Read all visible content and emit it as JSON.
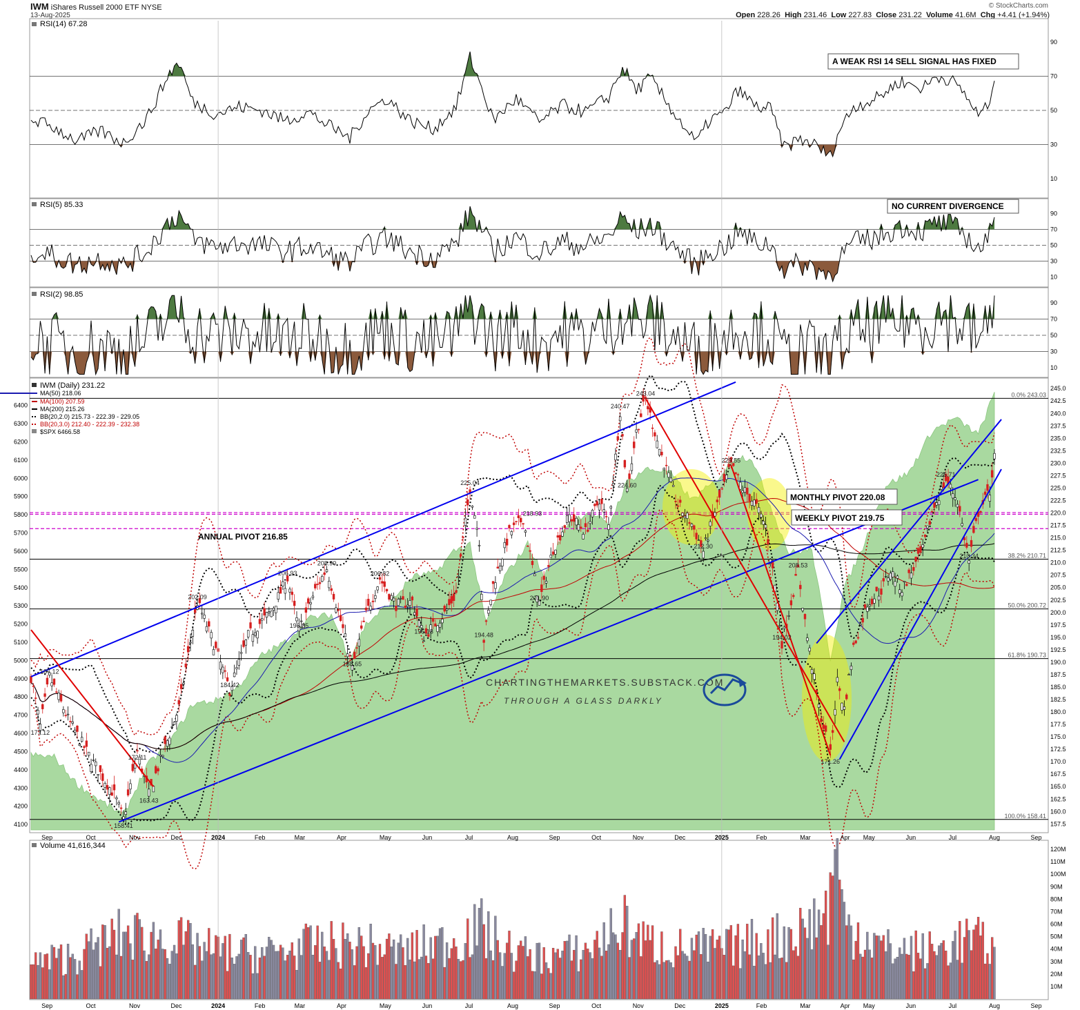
{
  "header": {
    "ticker": "IWM",
    "name": "iShares Russell 2000 ETF",
    "exchange": "NYSE",
    "date": "13-Aug-2025",
    "brand": "© StockCharts.com",
    "open_label": "Open",
    "open": "228.26",
    "high_label": "High",
    "high": "231.46",
    "low_label": "Low",
    "low": "227.83",
    "close_label": "Close",
    "close": "231.22",
    "volume_label": "Volume",
    "volume": "41.6M",
    "chg_label": "Chg",
    "chg": "+4.41 (+1.94%)"
  },
  "colors": {
    "up_candle": "#000000",
    "down_candle": "#d62020",
    "trend_red": "#e00000",
    "channel_blue": "#0000ee",
    "ma50": "#1a1ab0",
    "ma100": "#c00000",
    "ma200": "#000000",
    "pivot_magenta": "#cc00cc",
    "spx_area": "#a9d9a0",
    "rsi_over": "#4d7a40",
    "rsi_under": "#8b5a3c",
    "highlight": "#f5f000"
  },
  "x_axis_labels": [
    "Sep",
    "Oct",
    "Nov",
    "Dec",
    "2024",
    "Feb",
    "Mar",
    "Apr",
    "May",
    "Jun",
    "Jul",
    "Aug",
    "Sep",
    "Oct",
    "Nov",
    "Dec",
    "2025",
    "Feb",
    "Mar",
    "Apr",
    "May",
    "Jun",
    "Jul",
    "Aug",
    "Sep"
  ],
  "panels": {
    "rsi14": {
      "label": "RSI(14) 67.28",
      "note": "A WEAK RSI 14 SELL SIGNAL HAS FIXED",
      "ticks": [
        "90",
        "70",
        "50",
        "30",
        "10"
      ]
    },
    "rsi5": {
      "label": "RSI(5) 85.33",
      "note": "NO CURRENT DIVERGENCE",
      "ticks": [
        "90",
        "70",
        "50",
        "30",
        "10"
      ]
    },
    "rsi2": {
      "label": "RSI(2) 98.85",
      "ticks": [
        "90",
        "70",
        "50",
        "30",
        "10"
      ]
    },
    "volume": {
      "label": "Volume 41,616,344",
      "ticks": [
        "120M",
        "110M",
        "100M",
        "90M",
        "80M",
        "70M",
        "60M",
        "50M",
        "40M",
        "30M",
        "20M",
        "10M"
      ]
    }
  },
  "legend": {
    "price": "IWM (Daily) 231.22",
    "ma50": "MA(50) 218.06",
    "ma100": "MA(100) 207.59",
    "ma200": "MA(200) 215.26",
    "bb2": "BB(20,2.0) 215.73 - 222.39 - 229.05",
    "bb3": "BB(20,3.0) 212.40 - 222.39 - 232.38",
    "spx": "$SPX 6466.58"
  },
  "annotations": {
    "annual_pivot": "ANNUAL PIVOT 216.85",
    "monthly_pivot": "MONTHLY PIVOT 220.08",
    "weekly_pivot": "WEEKLY PIVOT 219.75",
    "watermark_1": "CHARTINGTHEMARKETS.SUBSTACK.COM",
    "watermark_2": "THROUGH A GLASS DARKLY"
  },
  "fib_levels": [
    {
      "label": "0.0% 243.03",
      "value": 243.03
    },
    {
      "label": "38.2% 210.71",
      "value": 210.71
    },
    {
      "label": "50.0% 200.72",
      "value": 200.72
    },
    {
      "label": "61.8% 190.73",
      "value": 190.73
    },
    {
      "label": "100.0% 158.41",
      "value": 158.41
    }
  ],
  "price_ticks": [
    "245.0",
    "242.5",
    "240.0",
    "237.5",
    "235.0",
    "232.5",
    "230.0",
    "227.5",
    "225.0",
    "222.5",
    "220.0",
    "217.5",
    "215.0",
    "212.5",
    "210.0",
    "207.5",
    "205.0",
    "202.5",
    "200.0",
    "197.5",
    "195.0",
    "192.5",
    "190.0",
    "187.5",
    "185.0",
    "182.5",
    "180.0",
    "177.5",
    "175.0",
    "172.5",
    "170.0",
    "167.5",
    "165.0",
    "162.5",
    "160.0",
    "157.5"
  ],
  "spx_ticks": [
    "6400",
    "6300",
    "6200",
    "6100",
    "6000",
    "5900",
    "5800",
    "5700",
    "5600",
    "5500",
    "5400",
    "5300",
    "5200",
    "5100",
    "5000",
    "4900",
    "4800",
    "4700",
    "4600",
    "4500",
    "4400",
    "4300",
    "4200",
    "4100"
  ],
  "price_labels": [
    {
      "label": "187.12",
      "i": 8,
      "v": 187.12
    },
    {
      "label": "177.12",
      "i": 4,
      "v": 177.12
    },
    {
      "label": "172.11",
      "i": 46,
      "v": 172.11
    },
    {
      "label": "163.43",
      "i": 51,
      "v": 163.43
    },
    {
      "label": "158.41",
      "i": 40,
      "v": 158.41
    },
    {
      "label": "202.09",
      "i": 72,
      "v": 202.09
    },
    {
      "label": "184.42",
      "i": 86,
      "v": 184.42
    },
    {
      "label": "206.93",
      "i": 111,
      "v": 206.93
    },
    {
      "label": "196.35",
      "i": 116,
      "v": 196.35
    },
    {
      "label": "208.90",
      "i": 128,
      "v": 208.9
    },
    {
      "label": "188.65",
      "i": 139,
      "v": 188.65
    },
    {
      "label": "206.82",
      "i": 151,
      "v": 206.82
    },
    {
      "label": "195.18",
      "i": 170,
      "v": 195.18
    },
    {
      "label": "225.04",
      "i": 190,
      "v": 225.04
    },
    {
      "label": "194.48",
      "i": 196,
      "v": 194.48
    },
    {
      "label": "218.93",
      "i": 217,
      "v": 218.93
    },
    {
      "label": "201.90",
      "i": 220,
      "v": 201.9
    },
    {
      "label": "224.60",
      "i": 258,
      "v": 224.6
    },
    {
      "label": "240.47",
      "i": 255,
      "v": 240.47
    },
    {
      "label": "243.04",
      "i": 266,
      "v": 243.04
    },
    {
      "label": "212.30",
      "i": 291,
      "v": 212.3
    },
    {
      "label": "229.55",
      "i": 303,
      "v": 229.55
    },
    {
      "label": "208.53",
      "i": 332,
      "v": 208.53
    },
    {
      "label": "194.02",
      "i": 325,
      "v": 194.02
    },
    {
      "label": "171.26",
      "i": 346,
      "v": 171.26
    },
    {
      "label": "226.71",
      "i": 396,
      "v": 226.71
    },
    {
      "label": "210.34",
      "i": 406,
      "v": 210.34
    }
  ],
  "chart_data": {
    "type": "candlestick",
    "title": "IWM iShares Russell 2000 ETF NYSE",
    "x_range": [
      "Aug-2023",
      "13-Aug-2025"
    ],
    "ylim": [
      156.3,
      246.0
    ],
    "secondary_ylim": [
      4070,
      6520
    ],
    "volume_ylim": [
      0,
      125
    ],
    "volume_unit": "M",
    "anchors": [
      [
        0,
        187.1
      ],
      [
        4,
        177.1
      ],
      [
        8,
        187.1
      ],
      [
        16,
        178.6
      ],
      [
        26,
        170.5
      ],
      [
        36,
        163.4
      ],
      [
        40,
        158.4
      ],
      [
        46,
        172.1
      ],
      [
        51,
        163.4
      ],
      [
        56,
        170.2
      ],
      [
        64,
        180.9
      ],
      [
        72,
        202.1
      ],
      [
        78,
        195.1
      ],
      [
        86,
        184.4
      ],
      [
        94,
        195.3
      ],
      [
        104,
        200.3
      ],
      [
        111,
        206.9
      ],
      [
        116,
        196.4
      ],
      [
        123,
        204.4
      ],
      [
        128,
        208.9
      ],
      [
        135,
        196.6
      ],
      [
        139,
        188.7
      ],
      [
        145,
        199.6
      ],
      [
        151,
        206.8
      ],
      [
        158,
        201.5
      ],
      [
        165,
        202.2
      ],
      [
        170,
        195.2
      ],
      [
        179,
        199.8
      ],
      [
        184,
        203.8
      ],
      [
        190,
        225.0
      ],
      [
        194,
        214.6
      ],
      [
        196,
        194.5
      ],
      [
        200,
        205.5
      ],
      [
        207,
        215.9
      ],
      [
        213,
        218.9
      ],
      [
        220,
        201.9
      ],
      [
        226,
        212.8
      ],
      [
        233,
        219.4
      ],
      [
        240,
        216.2
      ],
      [
        246,
        222.8
      ],
      [
        250,
        217.4
      ],
      [
        255,
        240.5
      ],
      [
        258,
        224.6
      ],
      [
        262,
        236.3
      ],
      [
        266,
        243.0
      ],
      [
        272,
        232.9
      ],
      [
        280,
        221.6
      ],
      [
        286,
        217.8
      ],
      [
        291,
        212.3
      ],
      [
        296,
        220.3
      ],
      [
        303,
        229.6
      ],
      [
        308,
        224.9
      ],
      [
        313,
        222.1
      ],
      [
        318,
        217.4
      ],
      [
        322,
        205.5
      ],
      [
        325,
        194.0
      ],
      [
        328,
        200.1
      ],
      [
        332,
        208.5
      ],
      [
        336,
        195.0
      ],
      [
        341,
        180.9
      ],
      [
        346,
        171.3
      ],
      [
        349,
        186.2
      ],
      [
        352,
        180.6
      ],
      [
        356,
        193.0
      ],
      [
        362,
        201.8
      ],
      [
        368,
        204.5
      ],
      [
        372,
        208.4
      ],
      [
        377,
        204.7
      ],
      [
        382,
        208.9
      ],
      [
        386,
        212.5
      ],
      [
        390,
        220.2
      ],
      [
        396,
        226.7
      ],
      [
        401,
        222.5
      ],
      [
        406,
        210.3
      ],
      [
        410,
        220.1
      ],
      [
        415,
        224.5
      ],
      [
        417,
        231.2
      ]
    ],
    "spx_anchors": [
      [
        0,
        4480
      ],
      [
        10,
        4470
      ],
      [
        20,
        4320
      ],
      [
        30,
        4230
      ],
      [
        40,
        4150
      ],
      [
        50,
        4420
      ],
      [
        60,
        4550
      ],
      [
        70,
        4760
      ],
      [
        80,
        4780
      ],
      [
        90,
        4860
      ],
      [
        100,
        5030
      ],
      [
        110,
        5100
      ],
      [
        120,
        5230
      ],
      [
        130,
        5250
      ],
      [
        138,
        5010
      ],
      [
        145,
        5200
      ],
      [
        155,
        5310
      ],
      [
        165,
        5460
      ],
      [
        175,
        5480
      ],
      [
        183,
        5600
      ],
      [
        190,
        5640
      ],
      [
        197,
        5200
      ],
      [
        205,
        5460
      ],
      [
        215,
        5640
      ],
      [
        222,
        5460
      ],
      [
        232,
        5750
      ],
      [
        242,
        5820
      ],
      [
        250,
        5740
      ],
      [
        258,
        5980
      ],
      [
        266,
        6050
      ],
      [
        276,
        6040
      ],
      [
        286,
        5880
      ],
      [
        296,
        5980
      ],
      [
        305,
        6120
      ],
      [
        312,
        6110
      ],
      [
        320,
        5850
      ],
      [
        328,
        5590
      ],
      [
        338,
        5610
      ],
      [
        346,
        5010
      ],
      [
        352,
        5400
      ],
      [
        360,
        5620
      ],
      [
        370,
        5960
      ],
      [
        380,
        6030
      ],
      [
        390,
        6260
      ],
      [
        400,
        6330
      ],
      [
        410,
        6240
      ],
      [
        417,
        6466.58
      ]
    ],
    "rsi14_anchors": [
      [
        0,
        45
      ],
      [
        10,
        40
      ],
      [
        20,
        32
      ],
      [
        30,
        38
      ],
      [
        40,
        31
      ],
      [
        50,
        45
      ],
      [
        60,
        72
      ],
      [
        64,
        78
      ],
      [
        70,
        55
      ],
      [
        80,
        48
      ],
      [
        90,
        52
      ],
      [
        100,
        50
      ],
      [
        110,
        44
      ],
      [
        120,
        49
      ],
      [
        130,
        40
      ],
      [
        138,
        34
      ],
      [
        146,
        50
      ],
      [
        154,
        57
      ],
      [
        164,
        44
      ],
      [
        174,
        39
      ],
      [
        184,
        52
      ],
      [
        190,
        81
      ],
      [
        196,
        60
      ],
      [
        200,
        44
      ],
      [
        210,
        57
      ],
      [
        220,
        43
      ],
      [
        230,
        53
      ],
      [
        240,
        49
      ],
      [
        250,
        58
      ],
      [
        256,
        75
      ],
      [
        262,
        62
      ],
      [
        268,
        69
      ],
      [
        276,
        53
      ],
      [
        284,
        38
      ],
      [
        288,
        31
      ],
      [
        294,
        45
      ],
      [
        300,
        48
      ],
      [
        306,
        62
      ],
      [
        314,
        52
      ],
      [
        320,
        51
      ],
      [
        326,
        28
      ],
      [
        332,
        33
      ],
      [
        338,
        31
      ],
      [
        346,
        23
      ],
      [
        350,
        39
      ],
      [
        356,
        52
      ],
      [
        366,
        57
      ],
      [
        376,
        67
      ],
      [
        386,
        63
      ],
      [
        392,
        70
      ],
      [
        398,
        68
      ],
      [
        404,
        60
      ],
      [
        410,
        47
      ],
      [
        414,
        52
      ],
      [
        417,
        67.3
      ]
    ],
    "volume_anchors": [
      [
        0,
        28
      ],
      [
        20,
        35
      ],
      [
        40,
        52
      ],
      [
        60,
        48
      ],
      [
        80,
        38
      ],
      [
        100,
        36
      ],
      [
        120,
        42
      ],
      [
        140,
        44
      ],
      [
        160,
        38
      ],
      [
        180,
        45
      ],
      [
        195,
        56
      ],
      [
        205,
        40
      ],
      [
        220,
        33
      ],
      [
        240,
        38
      ],
      [
        256,
        60
      ],
      [
        266,
        45
      ],
      [
        280,
        40
      ],
      [
        300,
        40
      ],
      [
        320,
        48
      ],
      [
        330,
        52
      ],
      [
        345,
        70
      ],
      [
        348,
        120
      ],
      [
        352,
        62
      ],
      [
        370,
        40
      ],
      [
        390,
        38
      ],
      [
        405,
        48
      ],
      [
        417,
        41.6
      ]
    ],
    "series": [
      {
        "name": "IWM (Daily) 231.22",
        "type": "candles"
      },
      {
        "name": "MA(50) 218.06",
        "type": "line"
      },
      {
        "name": "MA(100) 207.59",
        "type": "line"
      },
      {
        "name": "MA(200) 215.26",
        "type": "line"
      },
      {
        "name": "BB(20,2.0) 215.73 - 222.39 - 229.05",
        "type": "band"
      },
      {
        "name": "BB(20,3.0) 212.40 - 222.39 - 232.38",
        "type": "band"
      },
      {
        "name": "$SPX 6466.58",
        "type": "area"
      },
      {
        "name": "RSI(14) 67.28",
        "type": "line"
      },
      {
        "name": "RSI(5) 85.33",
        "type": "line"
      },
      {
        "name": "RSI(2) 98.85",
        "type": "line"
      },
      {
        "name": "Volume 41,616,344",
        "type": "bar"
      }
    ],
    "pivots": [
      {
        "name": "ANNUAL PIVOT 216.85",
        "value": 216.85
      },
      {
        "name": "MONTHLY PIVOT 220.08",
        "value": 220.08
      },
      {
        "name": "WEEKLY PIVOT 219.75",
        "value": 219.75
      }
    ],
    "channel_lines": [
      {
        "color": "blue",
        "from": [
          0,
          187.1
        ],
        "to": [
          305,
          246.3
        ]
      },
      {
        "color": "blue",
        "from": [
          38,
          157.9
        ],
        "to": [
          410,
          226.7
        ]
      },
      {
        "color": "blue",
        "from": [
          340,
          193.8
        ],
        "to": [
          420,
          238.8
        ]
      },
      {
        "color": "blue",
        "from": [
          350,
          170.5
        ],
        "to": [
          420,
          228.8
        ]
      },
      {
        "color": "red",
        "from": [
          0,
          196.5
        ],
        "to": [
          53,
          165.0
        ]
      },
      {
        "color": "red",
        "from": [
          266,
          243.0
        ],
        "to": [
          352,
          174.0
        ]
      },
      {
        "color": "red",
        "from": [
          303,
          229.6
        ],
        "to": [
          346,
          171.3
        ]
      }
    ],
    "rsi_ticks": [
      90,
      70,
      50,
      30,
      10
    ],
    "grid": false,
    "legend_position": "top-left"
  }
}
